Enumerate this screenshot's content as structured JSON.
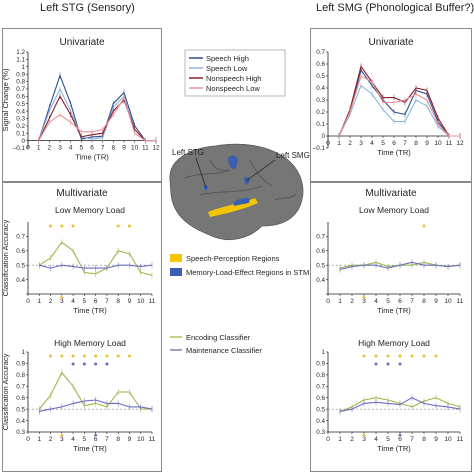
{
  "columns": {
    "left_title": "Left STG (Sensory)",
    "right_title": "Left SMG (Phonological Buffer?)"
  },
  "colors": {
    "speech_high": "#2b4f8c",
    "speech_low": "#8fb4dc",
    "nonspeech_high": "#8b1e2a",
    "nonspeech_low": "#e7939a",
    "encoding": "#9dba4a",
    "maintenance": "#6c6cbf",
    "sig_yellow": "#e8c230",
    "sig_blue": "#6c6cbf",
    "brain_yellow": "#f5c400",
    "brain_blue": "#3a5fb0"
  },
  "legend_univariate": [
    "Speech High",
    "Speech Low",
    "Nonspeech High",
    "Nonspeech Low"
  ],
  "legend_classifier": [
    "Encoding Classifier",
    "Maintenance Classifier"
  ],
  "brain": {
    "label_stg": "Left STG",
    "label_smg": "Left SMG",
    "legend_yellow": "Speech-Perception Regions",
    "legend_blue": "Memory-Load-Effect Regions in STM"
  },
  "section_labels": {
    "univariate": "Univariate",
    "multivariate": "Multivariate",
    "low_load": "Low Memory Load",
    "high_load": "High Memory Load"
  },
  "chart_data": [
    {
      "id": "stg_univariate",
      "type": "line",
      "title": "Univariate",
      "xlabel": "Time (TR)",
      "ylabel": "Signal Change (%)",
      "x": [
        1,
        2,
        3,
        4,
        5,
        6,
        7,
        8,
        9,
        10,
        11,
        12
      ],
      "xlim": [
        0,
        12
      ],
      "ylim": [
        -0.1,
        1.2
      ],
      "yticks": [
        "–0.1",
        "0",
        "0.1",
        "0.2",
        "0.3",
        "0.4",
        "0.5",
        "0.6",
        "0.7",
        "0.8",
        "0.9",
        "1",
        "1.1",
        "1.2"
      ],
      "series": [
        {
          "name": "Speech High",
          "color_key": "speech_high",
          "values": [
            0,
            0.45,
            0.88,
            0.5,
            0.02,
            0.05,
            0.06,
            0.5,
            0.65,
            0.2,
            0,
            0
          ]
        },
        {
          "name": "Speech Low",
          "color_key": "speech_low",
          "values": [
            0,
            0.4,
            0.7,
            0.4,
            0.05,
            0.02,
            0.04,
            0.45,
            0.6,
            0.15,
            0,
            0
          ]
        },
        {
          "name": "Nonspeech High",
          "color_key": "nonspeech_high",
          "values": [
            0,
            0.3,
            0.6,
            0.35,
            0.05,
            0.08,
            0.1,
            0.4,
            0.55,
            0.15,
            0,
            0
          ]
        },
        {
          "name": "Nonspeech Low",
          "color_key": "nonspeech_low",
          "values": [
            0,
            0.25,
            0.35,
            0.25,
            0.12,
            0.12,
            0.15,
            0.35,
            0.58,
            0.1,
            0,
            0
          ]
        }
      ]
    },
    {
      "id": "smg_univariate",
      "type": "line",
      "title": "Univariate",
      "xlabel": "Time (TR)",
      "ylabel": "",
      "x": [
        1,
        2,
        3,
        4,
        5,
        6,
        7,
        8,
        9,
        10,
        11,
        12
      ],
      "xlim": [
        0,
        12
      ],
      "ylim": [
        -0.1,
        0.7
      ],
      "yticks": [
        "–0.1",
        "0",
        "0.1",
        "0.2",
        "0.3",
        "0.4",
        "0.5",
        "0.6",
        "0.7"
      ],
      "series": [
        {
          "name": "Speech High",
          "color_key": "speech_high",
          "values": [
            0,
            0.2,
            0.55,
            0.42,
            0.3,
            0.2,
            0.18,
            0.38,
            0.35,
            0.12,
            0,
            0
          ]
        },
        {
          "name": "Speech Low",
          "color_key": "speech_low",
          "values": [
            0,
            0.18,
            0.42,
            0.35,
            0.22,
            0.12,
            0.12,
            0.3,
            0.25,
            0.08,
            0,
            0
          ]
        },
        {
          "name": "Nonspeech High",
          "color_key": "nonspeech_high",
          "values": [
            0,
            0.22,
            0.58,
            0.45,
            0.32,
            0.32,
            0.28,
            0.4,
            0.38,
            0.15,
            0,
            0
          ]
        },
        {
          "name": "Nonspeech Low",
          "color_key": "nonspeech_low",
          "values": [
            0,
            0.2,
            0.5,
            0.45,
            0.28,
            0.28,
            0.3,
            0.35,
            0.3,
            0.1,
            0,
            0
          ]
        }
      ]
    },
    {
      "id": "stg_low_load",
      "type": "line",
      "title": "Low Memory Load",
      "xlabel": "Time (TR)",
      "ylabel": "Classification Accuracy",
      "x": [
        1,
        2,
        3,
        4,
        5,
        6,
        7,
        8,
        9,
        10,
        11
      ],
      "xlim": [
        0,
        11
      ],
      "ylim": [
        0.3,
        0.8
      ],
      "yticks": [
        "",
        "0.4",
        "0.5",
        "0.6",
        "0.7"
      ],
      "chance": 0.5,
      "series": [
        {
          "name": "Encoding Classifier",
          "color_key": "encoding",
          "values": [
            0.5,
            0.55,
            0.66,
            0.6,
            0.45,
            0.44,
            0.48,
            0.6,
            0.58,
            0.45,
            0.43
          ]
        },
        {
          "name": "Maintenance Classifier",
          "color_key": "maintenance",
          "values": [
            0.5,
            0.48,
            0.5,
            0.49,
            0.48,
            0.48,
            0.48,
            0.5,
            0.5,
            0.49,
            0.5
          ]
        }
      ],
      "sig_top": [
        2,
        3,
        4,
        8,
        9
      ],
      "sig_axis": [
        3
      ]
    },
    {
      "id": "smg_low_load",
      "type": "line",
      "title": "Low Memory Load",
      "xlabel": "Time (TR)",
      "ylabel": "",
      "x": [
        1,
        2,
        3,
        4,
        5,
        6,
        7,
        8,
        9,
        10,
        11
      ],
      "xlim": [
        0,
        11
      ],
      "ylim": [
        0.3,
        0.8
      ],
      "yticks": [
        "",
        "0.4",
        "0.5",
        "0.6",
        "0.7"
      ],
      "chance": 0.5,
      "series": [
        {
          "name": "Encoding Classifier",
          "color_key": "encoding",
          "values": [
            0.48,
            0.5,
            0.5,
            0.52,
            0.49,
            0.5,
            0.5,
            0.52,
            0.5,
            0.49,
            0.5
          ]
        },
        {
          "name": "Maintenance Classifier",
          "color_key": "maintenance",
          "values": [
            0.47,
            0.49,
            0.5,
            0.5,
            0.48,
            0.5,
            0.52,
            0.5,
            0.5,
            0.49,
            0.5
          ]
        }
      ],
      "sig_top": [
        8
      ],
      "sig_axis": [
        3
      ]
    },
    {
      "id": "stg_high_load",
      "type": "line",
      "title": "High Memory Load",
      "xlabel": "Time (TR)",
      "ylabel": "Classification Accuracy",
      "x": [
        1,
        2,
        3,
        4,
        5,
        6,
        7,
        8,
        9,
        10,
        11
      ],
      "xlim": [
        0,
        11
      ],
      "ylim": [
        0.3,
        1.0
      ],
      "yticks": [
        "0.3",
        "0.4",
        "0.5",
        "0.6",
        "0.7",
        "0.8",
        "0.9",
        "1"
      ],
      "chance": 0.5,
      "series": [
        {
          "name": "Encoding Classifier",
          "color_key": "encoding",
          "values": [
            0.5,
            0.62,
            0.82,
            0.7,
            0.53,
            0.55,
            0.52,
            0.65,
            0.65,
            0.5,
            0.5
          ]
        },
        {
          "name": "Maintenance Classifier",
          "color_key": "maintenance",
          "values": [
            0.48,
            0.5,
            0.52,
            0.55,
            0.57,
            0.58,
            0.55,
            0.55,
            0.52,
            0.52,
            0.5
          ]
        }
      ],
      "sig_top": [
        2,
        3,
        4,
        5,
        6,
        7,
        8,
        9
      ],
      "sig_mid": [
        4,
        5,
        6,
        7
      ],
      "sig_axis": [
        3,
        6
      ]
    },
    {
      "id": "smg_high_load",
      "type": "line",
      "title": "High Memory Load",
      "xlabel": "Time (TR)",
      "ylabel": "",
      "x": [
        1,
        2,
        3,
        4,
        5,
        6,
        7,
        8,
        9,
        10,
        11
      ],
      "xlim": [
        0,
        11
      ],
      "ylim": [
        0.3,
        1.0
      ],
      "yticks": [
        "0.3",
        "0.4",
        "0.5",
        "0.6",
        "0.7",
        "0.8",
        "0.9",
        "1"
      ],
      "chance": 0.5,
      "series": [
        {
          "name": "Encoding Classifier",
          "color_key": "encoding",
          "values": [
            0.48,
            0.52,
            0.58,
            0.6,
            0.58,
            0.55,
            0.52,
            0.57,
            0.6,
            0.55,
            0.52
          ]
        },
        {
          "name": "Maintenance Classifier",
          "color_key": "maintenance",
          "values": [
            0.48,
            0.5,
            0.55,
            0.56,
            0.55,
            0.54,
            0.6,
            0.55,
            0.53,
            0.52,
            0.5
          ]
        }
      ],
      "sig_top": [
        3,
        4,
        5,
        6,
        7,
        8,
        9
      ],
      "sig_mid": [
        4,
        5,
        6
      ],
      "sig_axis": [
        3,
        6
      ]
    }
  ]
}
